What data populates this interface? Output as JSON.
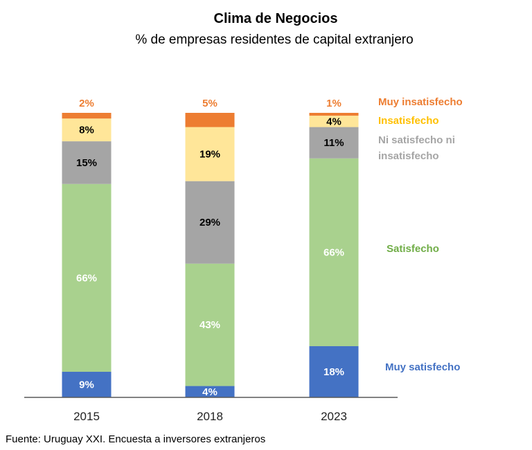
{
  "chart_data": {
    "type": "bar",
    "stacked": true,
    "title": "Clima de Negocios",
    "subtitle": "% de empresas residentes de capital extranjero",
    "categories": [
      "2015",
      "2018",
      "2023"
    ],
    "series": [
      {
        "name": "Muy satisfecho",
        "values": [
          9,
          4,
          18
        ],
        "labels": [
          "9%",
          "4%",
          "18%"
        ],
        "color": "#4472C4",
        "label_color": "#ffffff",
        "legend_color": "#4472C4"
      },
      {
        "name": "Satisfecho",
        "values": [
          66,
          43,
          66
        ],
        "labels": [
          "66%",
          "43%",
          "66%"
        ],
        "color": "#A9D18E",
        "label_color": "#ffffff",
        "legend_color": "#70AD47"
      },
      {
        "name": "Ni satisfecho ni insatisfecho",
        "values": [
          15,
          29,
          11
        ],
        "labels": [
          "15%",
          "29%",
          "11%"
        ],
        "color": "#A5A5A5",
        "label_color": "#000000",
        "legend_color": "#A5A5A5"
      },
      {
        "name": "Insatisfecho",
        "values": [
          8,
          19,
          4
        ],
        "labels": [
          "8%",
          "19%",
          "4%"
        ],
        "color": "#FFE699",
        "label_color": "#000000",
        "legend_color": "#FFC000"
      },
      {
        "name": "Muy insatisfecho",
        "values": [
          2,
          5,
          1
        ],
        "labels": [
          "2%",
          "5%",
          "1%"
        ],
        "color": "#ED7D31",
        "label_color": "#ED7D31",
        "legend_color": "#ED7D31"
      }
    ],
    "legend_placement": "right",
    "grid": false,
    "source": "Fuente: Uruguay XXI. Encuesta a inversores extranjeros"
  }
}
